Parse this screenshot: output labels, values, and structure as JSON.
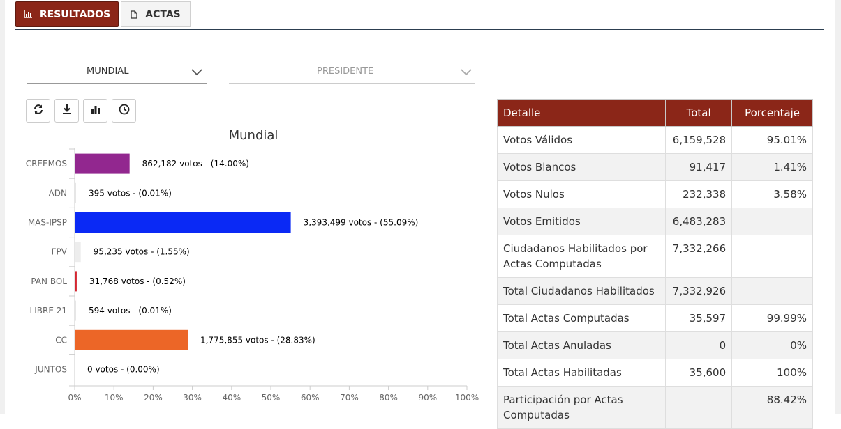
{
  "tabs": {
    "results": "RESULTADOS",
    "actas": "ACTAS"
  },
  "filters": {
    "scope": {
      "value": "MUNDIAL",
      "icon": "chevron-down-icon"
    },
    "office": {
      "value": "PRESIDENTE",
      "icon": "chevron-down-icon"
    }
  },
  "toolbar": [
    "refresh-icon",
    "download-icon",
    "bar-chart-icon",
    "clock-icon"
  ],
  "chart_data": {
    "type": "bar",
    "orientation": "horizontal",
    "title": "Mundial",
    "categories": [
      "CREEMOS",
      "ADN",
      "MAS-IPSP",
      "FPV",
      "PAN BOL",
      "LIBRE 21",
      "CC",
      "JUNTOS"
    ],
    "values": [
      14.0,
      0.01,
      55.09,
      1.55,
      0.52,
      0.01,
      28.83,
      0.0
    ],
    "labels": [
      "862,182 votos - (14.00%)",
      "395 votos - (0.01%)",
      "3,393,499 votos - (55.09%)",
      "95,235 votos - (1.55%)",
      "31,768 votos - (0.52%)",
      "594 votos - (0.01%)",
      "1,775,855 votos - (28.83%)",
      "0 votos - (0.00%)"
    ],
    "colors": [
      "#92278f",
      "#e6e6e6",
      "#0a29f5",
      "#ededed",
      "#d42630",
      "#e6e6e6",
      "#ec6627",
      "#e6e6e6"
    ],
    "xlim": [
      0,
      100
    ],
    "xticks": [
      "0%",
      "10%",
      "20%",
      "30%",
      "40%",
      "50%",
      "60%",
      "70%",
      "80%",
      "90%",
      "100%"
    ],
    "xlabel": "",
    "ylabel": "",
    "grid": false,
    "legend": "none"
  },
  "table": {
    "headers": [
      "Detalle",
      "Total",
      "Porcentaje"
    ],
    "rows": [
      {
        "label": "Votos Válidos",
        "total": "6,159,528",
        "pct": "95.01%"
      },
      {
        "label": "Votos Blancos",
        "total": "91,417",
        "pct": "1.41%"
      },
      {
        "label": "Votos Nulos",
        "total": "232,338",
        "pct": "3.58%"
      },
      {
        "label": "Votos Emitidos",
        "total": "6,483,283",
        "pct": ""
      },
      {
        "label": "Ciudadanos Habilitados por Actas Computadas",
        "total": "7,332,266",
        "pct": ""
      },
      {
        "label": "Total Ciudadanos Habilitados",
        "total": "7,332,926",
        "pct": ""
      },
      {
        "label": "Total Actas Computadas",
        "total": "35,597",
        "pct": "99.99%"
      },
      {
        "label": "Total Actas Anuladas",
        "total": "0",
        "pct": "0%"
      },
      {
        "label": "Total Actas Habilitadas",
        "total": "35,600",
        "pct": "100%"
      },
      {
        "label": "Participación por Actas Computadas",
        "total": "",
        "pct": "88.42%"
      }
    ]
  }
}
